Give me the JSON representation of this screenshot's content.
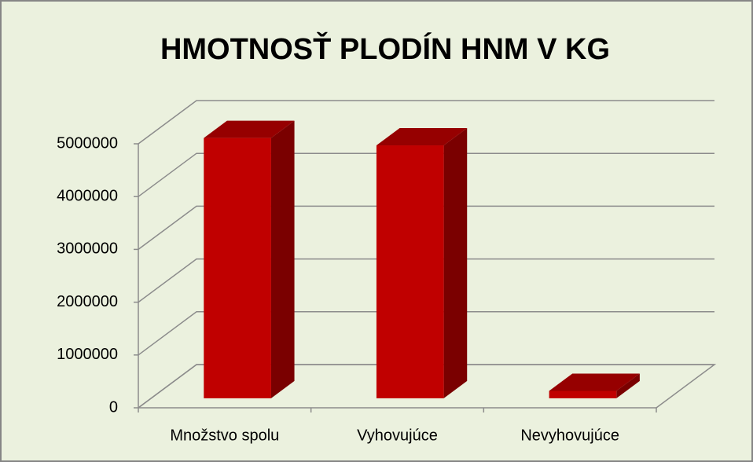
{
  "chart_data": {
    "type": "bar3d",
    "title": "HMOTNOSŤ PLODÍN HNM V KG",
    "categories": [
      "Množstvo spolu",
      "Vyhovujúce",
      "Nevyhovujúce"
    ],
    "values": [
      4930000,
      4790000,
      140000
    ],
    "color": "#c00000",
    "ylim": [
      0,
      5000000
    ],
    "yticks": [
      0,
      1000000,
      2000000,
      3000000,
      4000000,
      5000000
    ],
    "grid": true
  }
}
